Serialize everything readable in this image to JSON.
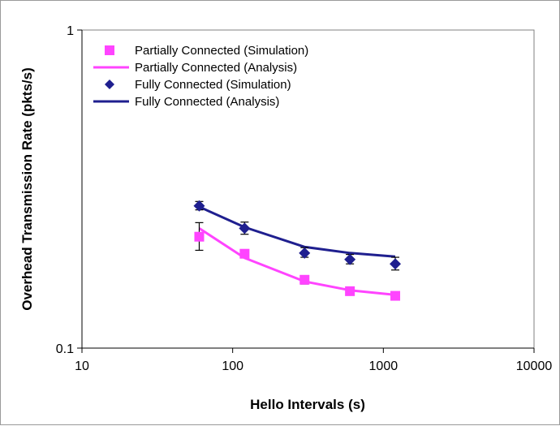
{
  "chart_data": {
    "type": "line",
    "xscale": "log",
    "yscale": "log",
    "xlim": [
      10,
      10000
    ],
    "ylim": [
      0.1,
      1
    ],
    "x_ticks": [
      "10",
      "100",
      "1000",
      "10000"
    ],
    "y_ticks": [
      "0.1",
      "1"
    ],
    "xlabel": "Hello Intervals (s)",
    "ylabel": "Overhead Transmission Rate (pkts/s)",
    "grid": false,
    "legend_position": "top-left",
    "series": [
      {
        "name": "Partially Connected (Simulation)",
        "kind": "markers",
        "marker": "square",
        "color": "#ff44ff",
        "x": [
          60,
          120,
          300,
          600,
          1200
        ],
        "y": [
          0.224,
          0.198,
          0.164,
          0.151,
          0.146
        ],
        "err_low": [
          0.203,
          0.193,
          0.159,
          0.148,
          0.143
        ],
        "err_high": [
          0.248,
          0.203,
          0.169,
          0.154,
          0.149
        ]
      },
      {
        "name": "Partially Connected (Analysis)",
        "kind": "line",
        "color": "#ff44ff",
        "x": [
          60,
          120,
          300,
          600,
          1200
        ],
        "y": [
          0.238,
          0.192,
          0.162,
          0.152,
          0.147
        ]
      },
      {
        "name": "Fully Connected (Simulation)",
        "kind": "markers",
        "marker": "diamond",
        "color": "#1f1f8f",
        "x": [
          60,
          120,
          300,
          600,
          1200
        ],
        "y": [
          0.28,
          0.238,
          0.199,
          0.19,
          0.184
        ],
        "err_low": [
          0.272,
          0.228,
          0.193,
          0.184,
          0.176
        ],
        "err_high": [
          0.289,
          0.249,
          0.207,
          0.197,
          0.193
        ]
      },
      {
        "name": "Fully Connected (Analysis)",
        "kind": "line",
        "color": "#1f1f8f",
        "x": [
          60,
          120,
          300,
          600,
          1200
        ],
        "y": [
          0.278,
          0.24,
          0.208,
          0.199,
          0.194
        ]
      }
    ]
  }
}
